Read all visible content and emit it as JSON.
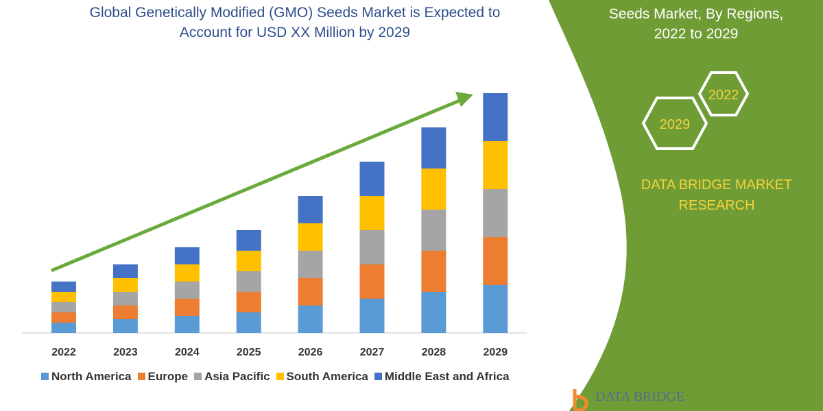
{
  "title_lines": [
    "Global Genetically Modified (GMO) Seeds Market is Expected to",
    "Account for USD XX Million by 2029"
  ],
  "side_title_lines": [
    "Seeds Market, By Regions,",
    "2022 to 2029"
  ],
  "hexagons": [
    "2022",
    "2029"
  ],
  "brand_lines": [
    "DATA BRIDGE MARKET",
    "RESEARCH"
  ],
  "logo_text": "DATA BRIDGE",
  "colors": {
    "green": "#6f9c35",
    "arrow": "#6aaa3a",
    "brand_text": "#f5d33a"
  },
  "chart_data": {
    "type": "bar",
    "stacked": true,
    "title": "Global Genetically Modified (GMO) Seeds Market is Expected to Account for USD XX Million by 2029",
    "categories": [
      "2022",
      "2023",
      "2024",
      "2025",
      "2026",
      "2027",
      "2028",
      "2029"
    ],
    "series": [
      {
        "name": "North America",
        "color": "#5b9bd5",
        "values": [
          15,
          20,
          25,
          30,
          40,
          50,
          60,
          70
        ]
      },
      {
        "name": "Europe",
        "color": "#ed7d31",
        "values": [
          15,
          20,
          25,
          30,
          40,
          50,
          60,
          70
        ]
      },
      {
        "name": "Asia Pacific",
        "color": "#a5a5a5",
        "values": [
          15,
          20,
          25,
          30,
          40,
          50,
          60,
          70
        ]
      },
      {
        "name": "South America",
        "color": "#ffc000",
        "values": [
          15,
          20,
          25,
          30,
          40,
          50,
          60,
          70
        ]
      },
      {
        "name": "Middle East and Africa",
        "color": "#4472c4",
        "values": [
          15,
          20,
          25,
          30,
          40,
          50,
          60,
          70
        ]
      }
    ],
    "y_axis_shown": false,
    "grid": false,
    "legend": "bottom",
    "annotation": "upward trend arrow"
  }
}
